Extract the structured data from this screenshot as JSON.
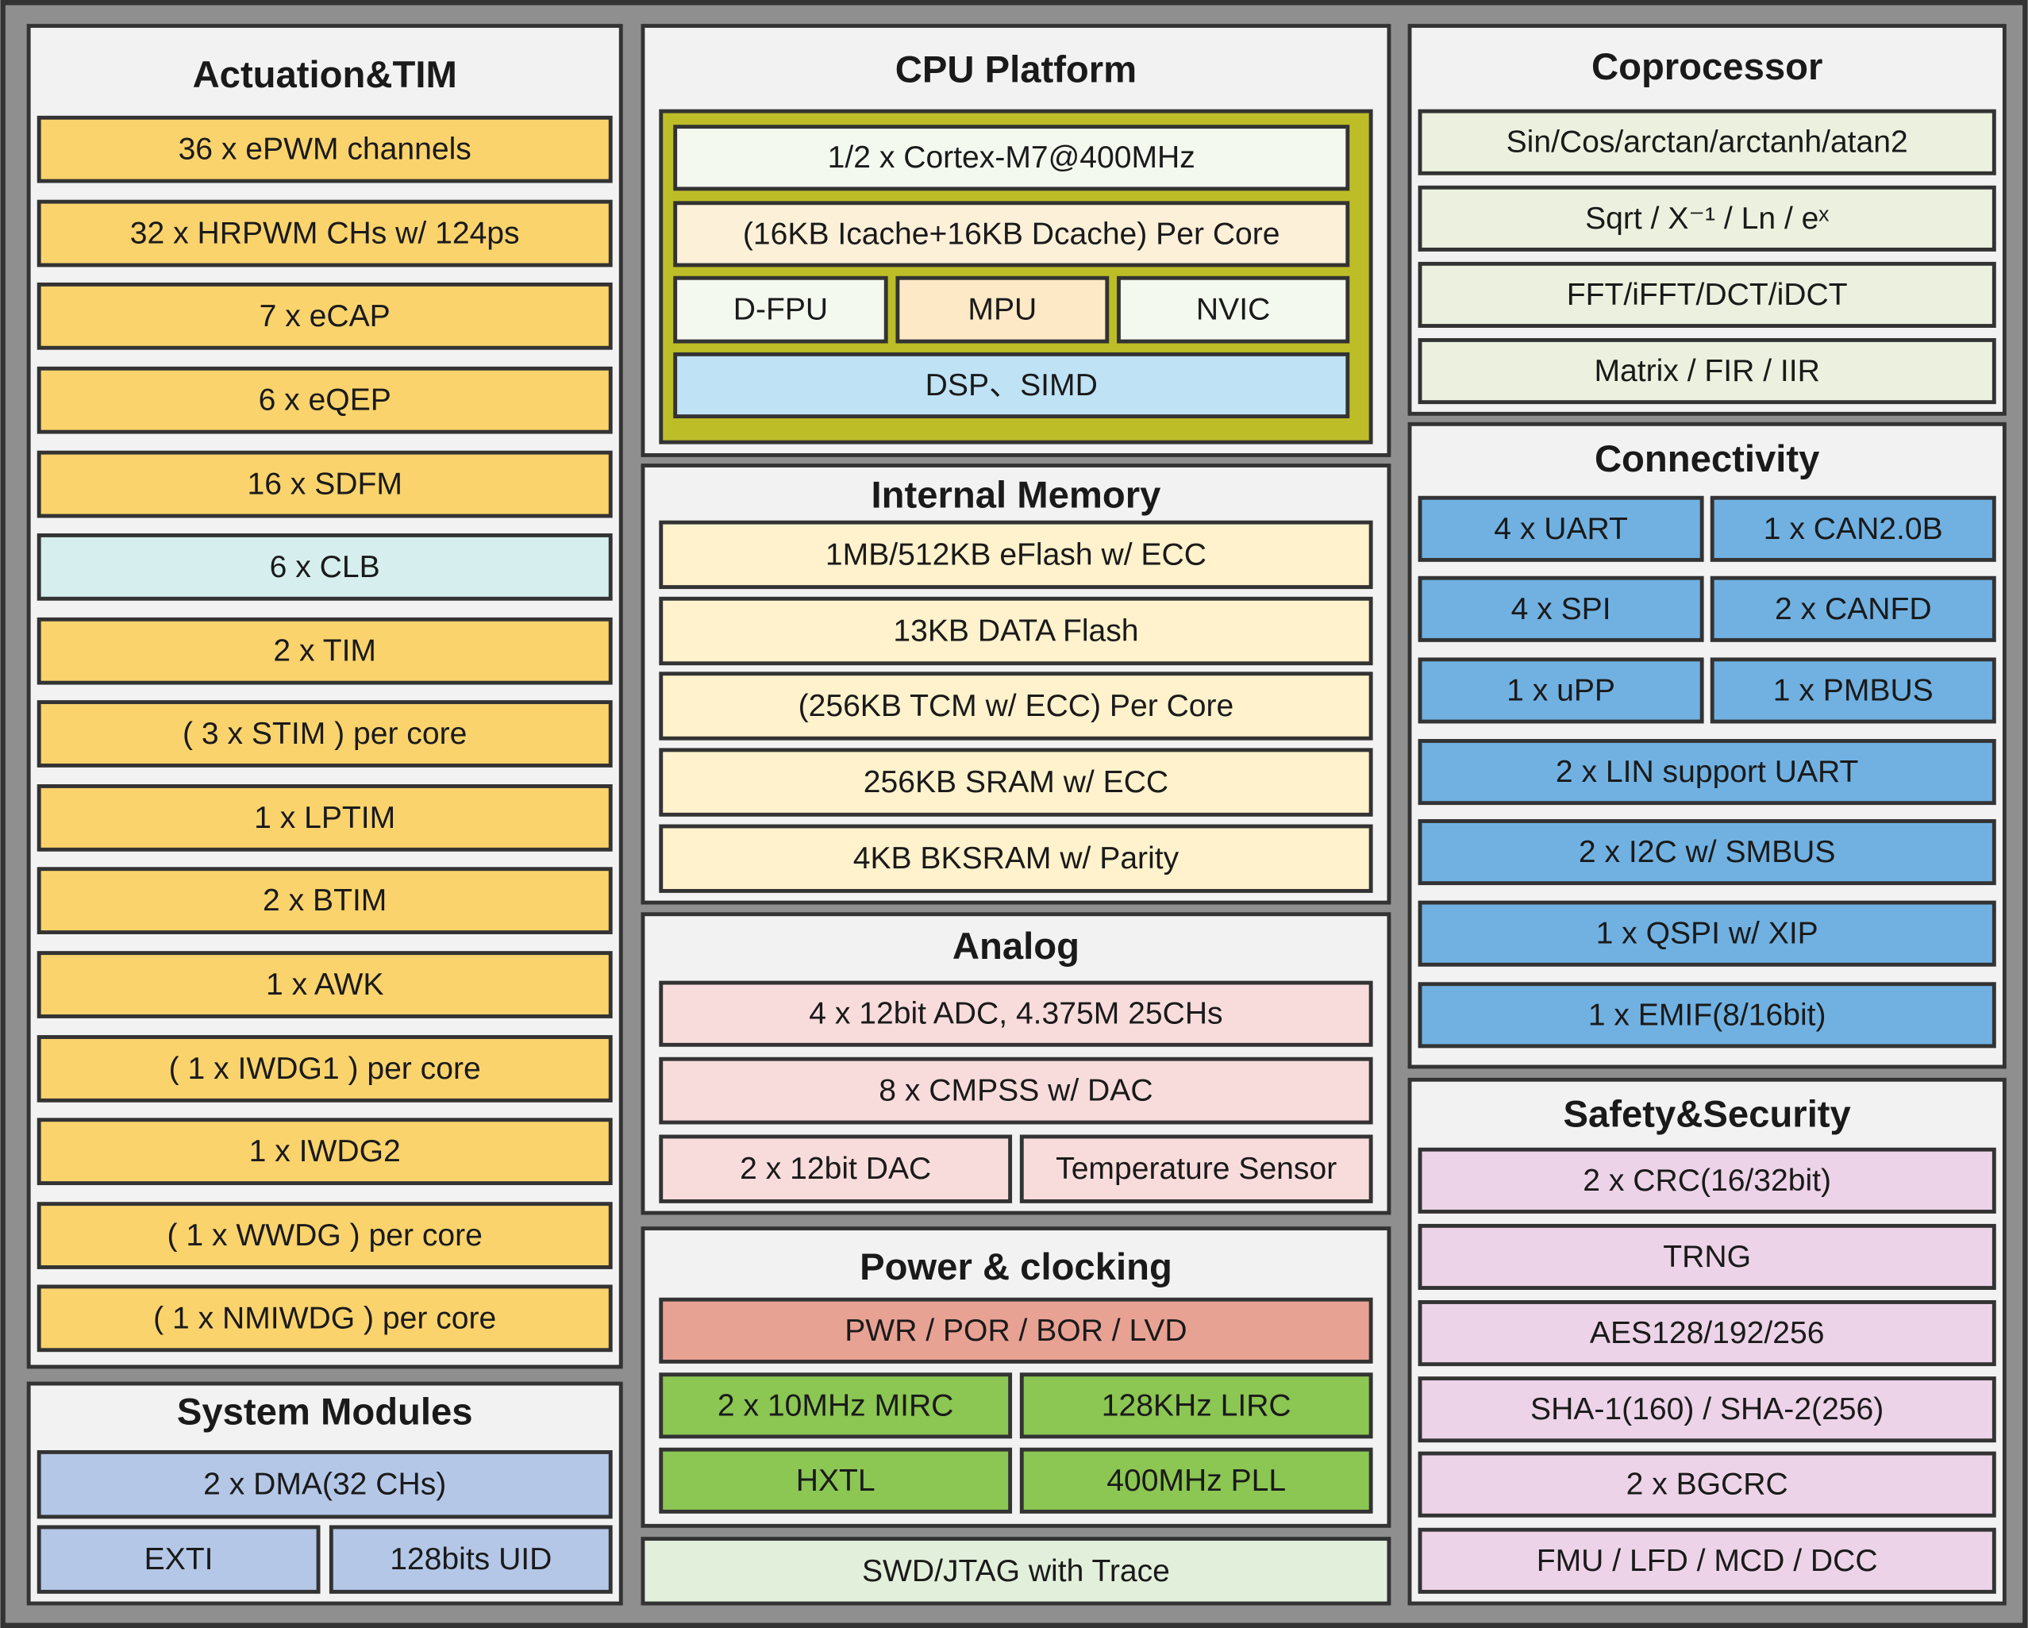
{
  "sections": [
    {
      "title": "Actuation&TIM",
      "rows": [
        [
          "36 x ePWM channels"
        ],
        [
          "32 x HRPWM CHs w/ 124ps"
        ],
        [
          "7 x eCAP"
        ],
        [
          "6 x eQEP"
        ],
        [
          "16 x SDFM"
        ],
        [
          "6 x CLB"
        ],
        [
          "2 x TIM"
        ],
        [
          "( 3 x STIM ) per core"
        ],
        [
          "1 x LPTIM"
        ],
        [
          "2 x BTIM"
        ],
        [
          "1 x AWK"
        ],
        [
          "( 1 x IWDG1 ) per core"
        ],
        [
          "1 x IWDG2"
        ],
        [
          "( 1 x WWDG ) per core"
        ],
        [
          "( 1 x NMIWDG ) per core"
        ]
      ]
    },
    {
      "title": "System Modules",
      "rows": [
        [
          "2 x DMA(32 CHs)"
        ],
        [
          "EXTI",
          "128bits UID"
        ]
      ]
    },
    {
      "title": "CPU Platform",
      "rows": [
        [
          "1/2 x Cortex-M7@400MHz"
        ],
        [
          "(16KB Icache+16KB Dcache) Per Core"
        ],
        [
          "D-FPU",
          "MPU",
          "NVIC"
        ],
        [
          "DSP、SIMD"
        ]
      ]
    },
    {
      "title": "Internal Memory",
      "rows": [
        [
          "1MB/512KB eFlash w/ ECC"
        ],
        [
          "13KB DATA Flash"
        ],
        [
          "(256KB TCM w/ ECC) Per Core"
        ],
        [
          "256KB SRAM w/ ECC"
        ],
        [
          "4KB BKSRAM w/ Parity"
        ]
      ]
    },
    {
      "title": "Analog",
      "rows": [
        [
          "4 x 12bit ADC, 4.375M 25CHs"
        ],
        [
          "8 x CMPSS w/ DAC"
        ],
        [
          "2 x 12bit DAC",
          "Temperature Sensor"
        ]
      ]
    },
    {
      "title": "Power & clocking",
      "rows": [
        [
          "PWR / POR / BOR / LVD"
        ],
        [
          "2 x 10MHz MIRC",
          "128KHz LIRC"
        ],
        [
          "HXTL",
          "400MHz PLL"
        ]
      ]
    },
    {
      "title": "Coprocessor",
      "rows": [
        [
          "Sin/Cos/arctan/arctanh/atan2"
        ],
        [
          "Sqrt / X⁻¹ / Ln / eˣ"
        ],
        [
          "FFT/iFFT/DCT/iDCT"
        ],
        [
          "Matrix / FIR / IIR"
        ]
      ]
    },
    {
      "title": "Connectivity",
      "rows": [
        [
          "4 x UART",
          "1 x CAN2.0B"
        ],
        [
          "4 x SPI",
          "2 x CANFD"
        ],
        [
          "1 x uPP",
          "1 x PMBUS"
        ],
        [
          "2 x LIN support UART"
        ],
        [
          "2 x I2C w/ SMBUS"
        ],
        [
          "1 x QSPI w/ XIP"
        ],
        [
          "1 x EMIF(8/16bit)"
        ]
      ]
    },
    {
      "title": "Safety&Security",
      "rows": [
        [
          "2 x CRC(16/32bit)"
        ],
        [
          "TRNG"
        ],
        [
          "AES128/192/256"
        ],
        [
          "SHA-1(160) / SHA-2(256)"
        ],
        [
          "2 x BGCRC"
        ],
        [
          "FMU / LFD / MCD / DCC"
        ]
      ]
    }
  ],
  "footer": "SWD/JTAG with Trace"
}
